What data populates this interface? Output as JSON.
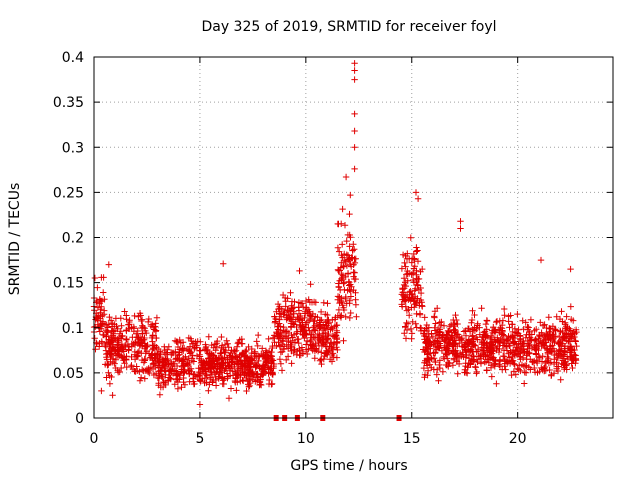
{
  "chart_data": {
    "type": "scatter",
    "title": "Day 325 of 2019, SRMTID for receiver foyl",
    "xlabel": "GPS time / hours",
    "ylabel": "SRMTID / TECUs",
    "xlim": [
      0,
      24.5
    ],
    "ylim": [
      0,
      0.4
    ],
    "x_ticks": [
      0,
      5,
      10,
      15,
      20
    ],
    "x_tick_labels": [
      "0",
      "5",
      "10",
      "15",
      "20"
    ],
    "y_ticks": [
      0,
      0.05,
      0.1,
      0.15,
      0.2,
      0.25,
      0.3,
      0.35,
      0.4
    ],
    "y_tick_labels": [
      "0",
      "0.05",
      "0.1",
      "0.15",
      "0.2",
      "0.25",
      "0.3",
      "0.35",
      "0.4"
    ],
    "grid": true,
    "marker": "+",
    "color": "#e00000",
    "series_profile": [
      {
        "x_start": 0.0,
        "x_end": 0.5,
        "baseline": 0.11,
        "spread": 0.04
      },
      {
        "x_start": 0.5,
        "x_end": 3.0,
        "baseline": 0.08,
        "spread": 0.035
      },
      {
        "x_start": 3.0,
        "x_end": 8.5,
        "baseline": 0.06,
        "spread": 0.025
      },
      {
        "x_start": 8.5,
        "x_end": 10.5,
        "baseline": 0.1,
        "spread": 0.035
      },
      {
        "x_start": 10.5,
        "x_end": 11.5,
        "baseline": 0.09,
        "spread": 0.03
      },
      {
        "x_start": 11.5,
        "x_end": 12.4,
        "baseline": 0.16,
        "spread": 0.06
      },
      {
        "x_start": 14.5,
        "x_end": 15.5,
        "baseline": 0.14,
        "spread": 0.05
      },
      {
        "x_start": 15.5,
        "x_end": 22.8,
        "baseline": 0.08,
        "spread": 0.03
      }
    ],
    "peaks": [
      {
        "x": 12.3,
        "y": 0.393
      },
      {
        "x": 12.3,
        "y": 0.385
      },
      {
        "x": 12.3,
        "y": 0.375
      },
      {
        "x": 12.3,
        "y": 0.337
      },
      {
        "x": 12.3,
        "y": 0.318
      },
      {
        "x": 12.3,
        "y": 0.3
      },
      {
        "x": 12.3,
        "y": 0.276
      },
      {
        "x": 11.9,
        "y": 0.267
      },
      {
        "x": 12.1,
        "y": 0.247
      },
      {
        "x": 15.2,
        "y": 0.25
      },
      {
        "x": 15.3,
        "y": 0.243
      },
      {
        "x": 17.3,
        "y": 0.218
      },
      {
        "x": 17.3,
        "y": 0.21
      },
      {
        "x": 0.7,
        "y": 0.17
      },
      {
        "x": 6.1,
        "y": 0.171
      },
      {
        "x": 9.7,
        "y": 0.163
      },
      {
        "x": 21.1,
        "y": 0.175
      },
      {
        "x": 22.5,
        "y": 0.165
      },
      {
        "x": 5.0,
        "y": 0.015
      },
      {
        "x": 0.35,
        "y": 0.03
      }
    ],
    "data_gaps_x": [
      8.6,
      9.0,
      9.6,
      10.8,
      14.4
    ]
  }
}
